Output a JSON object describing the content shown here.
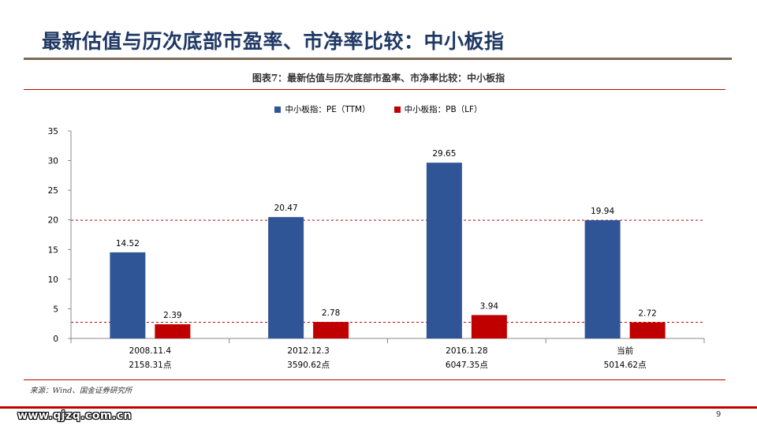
{
  "slide": {
    "title": "最新估值与历次底部市盈率、市净率比较：中小板指",
    "page_number": "9",
    "watermark": "www.qjzq.com.cn"
  },
  "figure": {
    "caption": "图表7：最新估值与历次底部市盈率、市净率比较：中小板指",
    "source": "来源：Wind、国金证券研究所"
  },
  "colors": {
    "title": "#1f3864",
    "pe_series": "#2f5597",
    "pb_series": "#c00000",
    "rule": "#c00000"
  },
  "chart_data": {
    "type": "bar",
    "title": "",
    "xlabel": "",
    "ylabel": "",
    "categories": [
      [
        "2008.11.4",
        "2158.31点"
      ],
      [
        "2012.12.3",
        "3590.62点"
      ],
      [
        "2016.1.28",
        "6047.35点"
      ],
      [
        "当前",
        "5014.62点"
      ]
    ],
    "series": [
      {
        "name": "中小板指：PE（TTM）",
        "color": "#2f5597",
        "values": [
          14.52,
          20.47,
          29.65,
          19.94
        ]
      },
      {
        "name": "中小板指：PB（LF）",
        "color": "#c00000",
        "values": [
          2.39,
          2.78,
          3.94,
          2.72
        ]
      }
    ],
    "ylim": [
      0,
      35
    ],
    "yticks": [
      0,
      5,
      10,
      15,
      20,
      25,
      30,
      35
    ],
    "reference_lines": [
      {
        "value": 19.94,
        "color": "#c00000",
        "style": "dashed"
      },
      {
        "value": 2.72,
        "color": "#c00000",
        "style": "dashed"
      }
    ],
    "grid": false,
    "legend_position": "top-center"
  }
}
